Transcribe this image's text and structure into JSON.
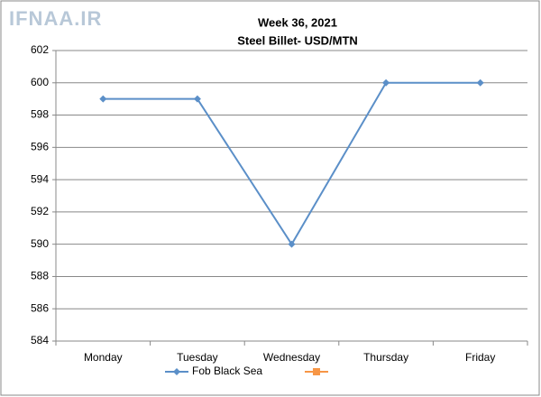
{
  "watermark": "IFNAA.IR",
  "chart_data": {
    "type": "line",
    "title": "Week 36, 2021",
    "subtitle": "Steel Billet- USD/MTN",
    "categories": [
      "Monday",
      "Tuesday",
      "Wednesday",
      "Thursday",
      "Friday"
    ],
    "series": [
      {
        "name": "Fob Black Sea",
        "color": "#5b8fc8",
        "values": [
          599,
          599,
          590,
          600,
          600
        ]
      },
      {
        "color": "#f79646",
        "values": [
          null,
          null,
          null,
          null,
          null
        ]
      }
    ],
    "ylim": [
      584,
      602
    ],
    "yticks": [
      584,
      586,
      588,
      590,
      592,
      594,
      596,
      598,
      600,
      602
    ],
    "grid": true,
    "legend": "bottom"
  }
}
